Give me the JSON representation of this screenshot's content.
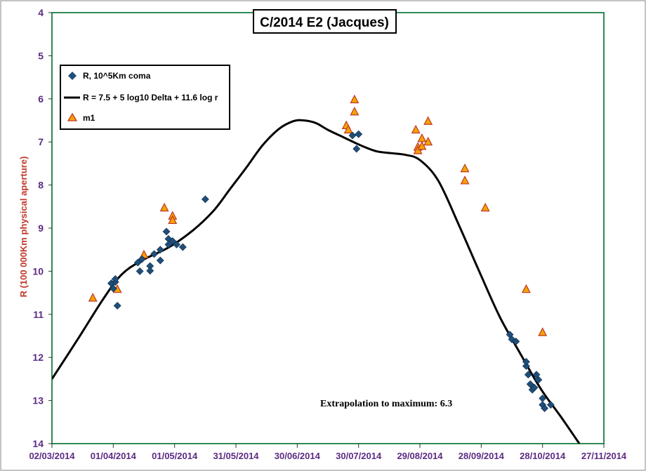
{
  "chart_data": {
    "type": "scatter",
    "title": "C/2014 E2 (Jacques)",
    "ylabel": "R (100 000Km physical  aperture)",
    "xlabel": "",
    "y_inverted": true,
    "ylim": [
      4,
      14
    ],
    "yticks": [
      4,
      5,
      6,
      7,
      8,
      9,
      10,
      11,
      12,
      13,
      14
    ],
    "xlim": [
      "02/03/2014",
      "27/11/2014"
    ],
    "xticks": [
      "02/03/2014",
      "01/04/2014",
      "01/05/2014",
      "31/05/2014",
      "30/06/2014",
      "30/07/2014",
      "29/08/2014",
      "28/09/2014",
      "28/10/2014",
      "27/11/2014"
    ],
    "grid": false,
    "legend_position": "top-left",
    "colors": {
      "diamond": "#1f4e79",
      "triangle_fill": "#f4a300",
      "triangle_stroke": "#c0392b",
      "curve": "#000000",
      "axis_text": "#5b2c83",
      "ylabel": "#c0392b"
    },
    "annotation": "Extrapolation  to maximum:  6.3",
    "series": [
      {
        "name": "R, 10^5Km coma",
        "marker": "diamond",
        "points": [
          [
            "2014-03-31",
            10.28
          ],
          [
            "2014-04-01",
            10.4
          ],
          [
            "2014-04-02",
            10.25
          ],
          [
            "2014-04-02",
            10.18
          ],
          [
            "2014-04-03",
            10.8
          ],
          [
            "2014-04-13",
            9.8
          ],
          [
            "2014-04-14",
            10.0
          ],
          [
            "2014-04-15",
            9.72
          ],
          [
            "2014-04-19",
            9.88
          ],
          [
            "2014-04-19",
            9.99
          ],
          [
            "2014-04-21",
            9.6
          ],
          [
            "2014-04-24",
            9.75
          ],
          [
            "2014-04-24",
            9.5
          ],
          [
            "2014-04-27",
            9.08
          ],
          [
            "2014-04-28",
            9.25
          ],
          [
            "2014-04-28",
            9.38
          ],
          [
            "2014-04-30",
            9.3
          ],
          [
            "2014-05-02",
            9.38
          ],
          [
            "2014-05-05",
            9.44
          ],
          [
            "2014-05-16",
            8.33
          ],
          [
            "2014-07-27",
            6.85
          ],
          [
            "2014-07-29",
            7.16
          ],
          [
            "2014-07-30",
            6.82
          ],
          [
            "2014-10-12",
            11.47
          ],
          [
            "2014-10-13",
            11.58
          ],
          [
            "2014-10-15",
            11.63
          ],
          [
            "2014-10-20",
            12.2
          ],
          [
            "2014-10-20",
            12.1
          ],
          [
            "2014-10-21",
            12.4
          ],
          [
            "2014-10-22",
            12.62
          ],
          [
            "2014-10-23",
            12.75
          ],
          [
            "2014-10-24",
            12.7
          ],
          [
            "2014-10-25",
            12.4
          ],
          [
            "2014-10-26",
            12.52
          ],
          [
            "2014-10-28",
            12.95
          ],
          [
            "2014-10-28",
            13.1
          ],
          [
            "2014-10-29",
            13.18
          ],
          [
            "2014-11-01",
            13.1
          ]
        ]
      },
      {
        "name": "R = 7.5 + 5 log10 Delta + 11.6  log r",
        "marker": "line",
        "points": [
          [
            "2014-03-02",
            12.5
          ],
          [
            "2014-03-15",
            11.55
          ],
          [
            "2014-03-27",
            10.65
          ],
          [
            "2014-04-05",
            10.08
          ],
          [
            "2014-04-15",
            9.75
          ],
          [
            "2014-04-28",
            9.45
          ],
          [
            "2014-05-10",
            9.05
          ],
          [
            "2014-05-20",
            8.6
          ],
          [
            "2014-05-28",
            8.1
          ],
          [
            "2014-06-05",
            7.6
          ],
          [
            "2014-06-13",
            7.08
          ],
          [
            "2014-06-21",
            6.7
          ],
          [
            "2014-06-28",
            6.52
          ],
          [
            "2014-07-03",
            6.5
          ],
          [
            "2014-07-09",
            6.56
          ],
          [
            "2014-07-15",
            6.72
          ],
          [
            "2014-07-23",
            6.9
          ],
          [
            "2014-08-01",
            7.1
          ],
          [
            "2014-08-08",
            7.22
          ],
          [
            "2014-08-15",
            7.26
          ],
          [
            "2014-08-22",
            7.3
          ],
          [
            "2014-08-29",
            7.42
          ],
          [
            "2014-09-07",
            7.9
          ],
          [
            "2014-09-17",
            8.92
          ],
          [
            "2014-09-27",
            10.0
          ],
          [
            "2014-10-07",
            11.05
          ],
          [
            "2014-10-17",
            11.9
          ],
          [
            "2014-10-27",
            12.72
          ],
          [
            "2014-11-06",
            13.38
          ],
          [
            "2014-11-15",
            14.0
          ]
        ]
      },
      {
        "name": "m1",
        "marker": "triangle",
        "points": [
          [
            "2014-03-22",
            10.62
          ],
          [
            "2014-04-03",
            10.42
          ],
          [
            "2014-04-16",
            9.62
          ],
          [
            "2014-04-26",
            8.53
          ],
          [
            "2014-04-30",
            8.72
          ],
          [
            "2014-04-30",
            8.82
          ],
          [
            "2014-07-24",
            6.62
          ],
          [
            "2014-07-25",
            6.72
          ],
          [
            "2014-07-28",
            6.02
          ],
          [
            "2014-07-28",
            6.3
          ],
          [
            "2014-08-27",
            6.72
          ],
          [
            "2014-08-28",
            7.12
          ],
          [
            "2014-08-28",
            7.2
          ],
          [
            "2014-08-30",
            6.92
          ],
          [
            "2014-08-30",
            7.1
          ],
          [
            "2014-09-02",
            6.52
          ],
          [
            "2014-09-02",
            7.0
          ],
          [
            "2014-09-20",
            7.62
          ],
          [
            "2014-09-20",
            7.9
          ],
          [
            "2014-09-30",
            8.53
          ],
          [
            "2014-10-20",
            10.42
          ],
          [
            "2014-10-28",
            11.42
          ]
        ]
      }
    ]
  }
}
